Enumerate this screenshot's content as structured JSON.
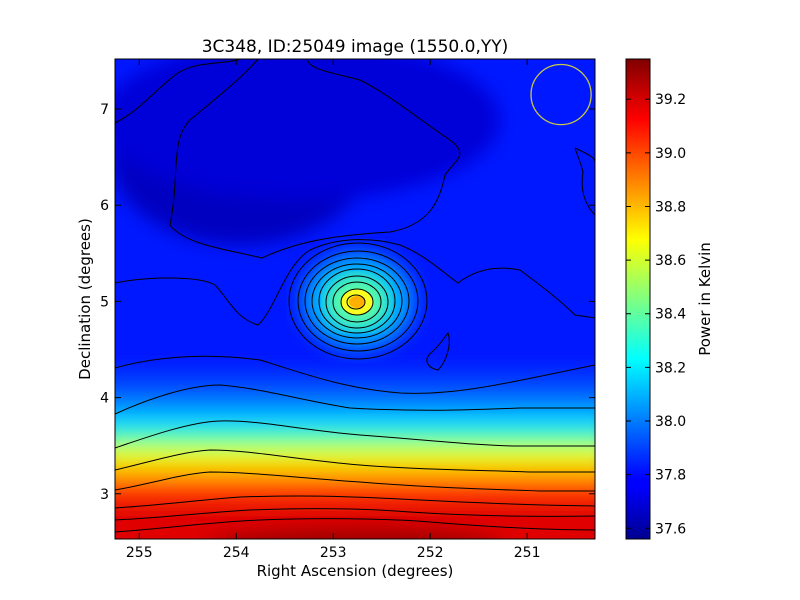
{
  "chart_data": {
    "type": "heatmap",
    "title": "3C348, ID:25049 image (1550.0,YY)",
    "xlabel": "Right Ascension (degrees)",
    "ylabel": "Declination (degrees)",
    "colorbar_label": "Power in Kelvin",
    "xlim": [
      255.25,
      250.3
    ],
    "ylim": [
      2.53,
      7.52
    ],
    "x_ticks": [
      {
        "value": 255,
        "label": "255"
      },
      {
        "value": 254,
        "label": "254"
      },
      {
        "value": 253,
        "label": "253"
      },
      {
        "value": 252,
        "label": "252"
      },
      {
        "value": 251,
        "label": "251"
      }
    ],
    "y_ticks": [
      {
        "value": 3,
        "label": "3"
      },
      {
        "value": 4,
        "label": "4"
      },
      {
        "value": 5,
        "label": "5"
      },
      {
        "value": 6,
        "label": "6"
      },
      {
        "value": 7,
        "label": "7"
      }
    ],
    "colorbar_range": [
      37.56,
      39.35
    ],
    "colorbar_ticks": [
      {
        "value": 37.6,
        "label": "37.6"
      },
      {
        "value": 37.8,
        "label": "37.8"
      },
      {
        "value": 38.0,
        "label": "38.0"
      },
      {
        "value": 38.2,
        "label": "38.2"
      },
      {
        "value": 38.4,
        "label": "38.4"
      },
      {
        "value": 38.6,
        "label": "38.6"
      },
      {
        "value": 38.8,
        "label": "38.8"
      },
      {
        "value": 39.0,
        "label": "39.0"
      },
      {
        "value": 39.2,
        "label": "39.2"
      }
    ],
    "colormap": "jet",
    "source": {
      "ra": 252.78,
      "dec": 4.99,
      "peak_kelvin": 38.6
    },
    "beam": {
      "ra": 250.65,
      "dec": 7.15,
      "radius_deg": 0.31,
      "color": "#c8c84a"
    },
    "contours": true,
    "colors": {
      "contour": "#000000",
      "frame": "#000000"
    }
  }
}
